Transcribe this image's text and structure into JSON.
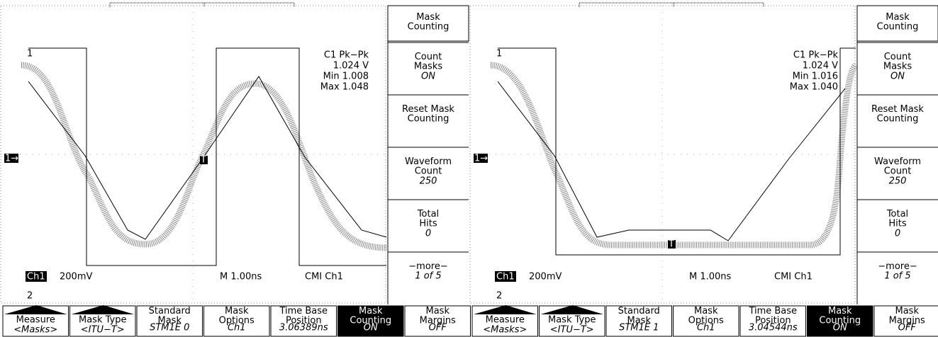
{
  "panels": [
    {
      "markers": {
        "ch1_top": "1",
        "ch2_bottom": "2",
        "ground": "1→",
        "trigger": "T"
      },
      "readout": {
        "title": "C1 Pk−Pk",
        "value": "1.024 V",
        "min": "Min 1.008",
        "max": "Max 1.048"
      },
      "status": {
        "channel": "Ch1",
        "scale": "200mV",
        "timebase": "M 1.00ns",
        "trigger": "CMI Ch1"
      },
      "side_menu": {
        "title": "Mask Counting",
        "items": [
          {
            "label": "Count Masks",
            "value": "ON"
          },
          {
            "label": "Reset Mask Counting"
          },
          {
            "label": "Waveform Count",
            "value": "250"
          },
          {
            "label": "Total Hits",
            "value": "0"
          },
          {
            "label": "−more−",
            "value": "1 of 5"
          }
        ]
      },
      "bottom_menu": [
        {
          "label": "Measure",
          "value": "<Masks>"
        },
        {
          "label": "Mask Type",
          "value": "<ITU−T>"
        },
        {
          "label": "Standard Mask",
          "value": "STM1E 0"
        },
        {
          "label": "Mask Options",
          "value": "Ch1"
        },
        {
          "label": "Time Base Position",
          "value": "3.06389ns"
        },
        {
          "label": "Mask Counting",
          "value": "ON"
        },
        {
          "label": "Mask Margins",
          "value": "OFF"
        }
      ]
    },
    {
      "markers": {
        "ch1_top": "1",
        "ch2_bottom": "2",
        "ground": "1→",
        "trigger": "T"
      },
      "readout": {
        "title": "C1 Pk−Pk",
        "value": "1.024 V",
        "min": "Min 1.016",
        "max": "Max 1.040"
      },
      "status": {
        "channel": "Ch1",
        "scale": "200mV",
        "timebase": "M 1.00ns",
        "trigger": "CMI Ch1"
      },
      "side_menu": {
        "title": "Mask Counting",
        "items": [
          {
            "label": "Count Masks",
            "value": "ON"
          },
          {
            "label": "Reset Mask Counting"
          },
          {
            "label": "Waveform Count",
            "value": "250"
          },
          {
            "label": "Total Hits",
            "value": "0"
          },
          {
            "label": "−more−",
            "value": "1 of 5"
          }
        ]
      },
      "bottom_menu": [
        {
          "label": "Measure",
          "value": "<Masks>"
        },
        {
          "label": "Mask Type",
          "value": "<ITU−T>"
        },
        {
          "label": "Standard Mask",
          "value": "STM1E 1"
        },
        {
          "label": "Mask Options",
          "value": "Ch1"
        },
        {
          "label": "Time Base Position",
          "value": "3.04544ns"
        },
        {
          "label": "Mask Counting",
          "value": "ON"
        },
        {
          "label": "Mask Margins",
          "value": "OFF"
        }
      ]
    }
  ]
}
